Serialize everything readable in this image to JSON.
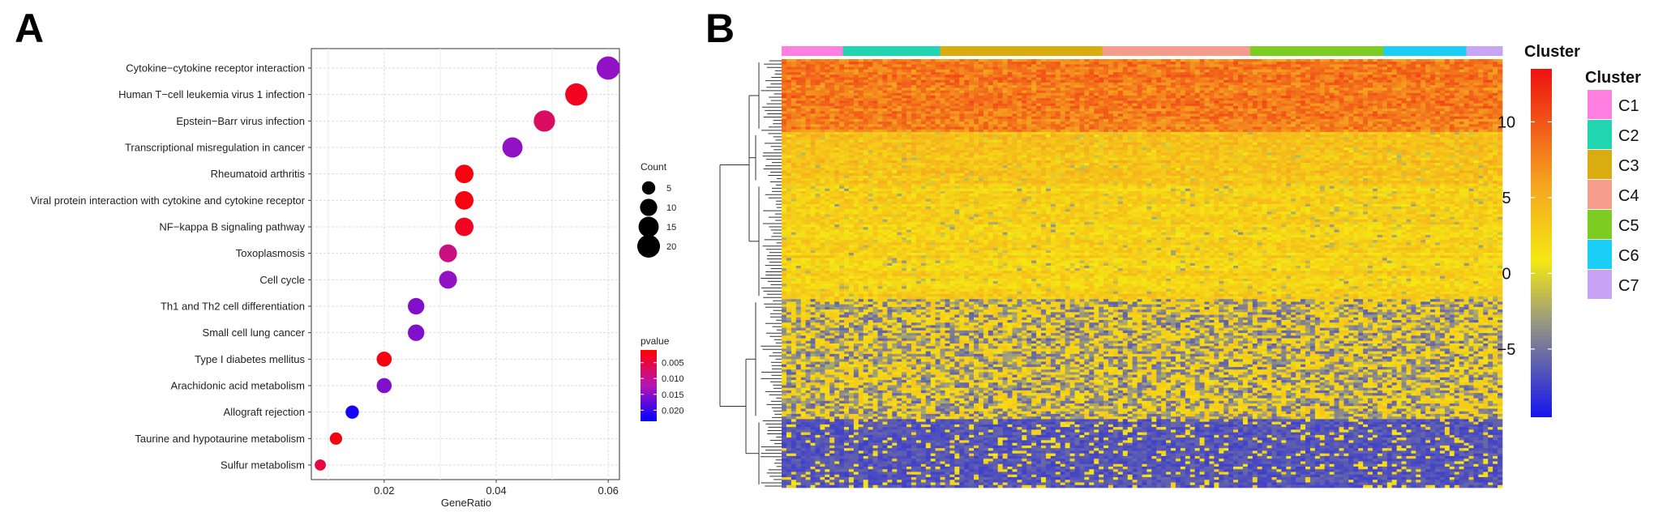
{
  "panels": {
    "a_label": "A",
    "b_label": "B"
  },
  "chart_data": [
    {
      "type": "scatter",
      "title": "",
      "xlabel": "GeneRatio",
      "ylabel": "",
      "xlim": [
        0.007,
        0.062
      ],
      "x_ticks": [
        "0.02",
        "0.04",
        "0.06"
      ],
      "x_tick_values": [
        0.02,
        0.04,
        0.06
      ],
      "grid": true,
      "legend_position": "right",
      "categories": [
        "Cytokine−cytokine receptor interaction",
        "Human T−cell leukemia virus 1 infection",
        "Epstein−Barr virus infection",
        "Transcriptional misregulation in cancer",
        "Rheumatoid arthritis",
        "Viral protein interaction with cytokine and cytokine receptor",
        "NF−kappa B signaling pathway",
        "Toxoplasmosis",
        "Cell cycle",
        "Th1 and Th2 cell differentiation",
        "Small cell lung cancer",
        "Type I diabetes mellitus",
        "Arachidonic acid metabolism",
        "Allograft rejection",
        "Taurine and hypotaurine metabolism",
        "Sulfur metabolism"
      ],
      "gene_ratio": [
        0.06,
        0.0543,
        0.0486,
        0.0429,
        0.0343,
        0.0343,
        0.0343,
        0.0314,
        0.0314,
        0.0257,
        0.0257,
        0.02,
        0.02,
        0.0143,
        0.0114,
        0.0086
      ],
      "count": [
        21,
        19,
        17,
        15,
        12,
        12,
        12,
        11,
        11,
        9,
        9,
        7,
        7,
        5,
        4,
        3
      ],
      "pvalue": [
        0.0145,
        0.003,
        0.007,
        0.0145,
        0.002,
        0.002,
        0.003,
        0.009,
        0.0145,
        0.0155,
        0.0155,
        0.002,
        0.0155,
        0.022,
        0.002,
        0.005
      ],
      "size_legend": {
        "title": "Count",
        "labels": [
          "5",
          "10",
          "15",
          "20"
        ],
        "values": [
          5,
          10,
          15,
          20
        ]
      },
      "color_legend": {
        "title": "pvalue",
        "labels": [
          "0.005",
          "0.010",
          "0.015",
          "0.020"
        ],
        "values": [
          0.005,
          0.01,
          0.015,
          0.02
        ],
        "low_color": "#ff0000",
        "mid_color": "#b516b5",
        "high_color": "#0000ff"
      }
    },
    {
      "type": "heatmap",
      "title": "",
      "column_annotation_title": "Cluster",
      "clusters": [
        {
          "name": "C1",
          "color": "#ff7fe0",
          "fraction": 0.085
        },
        {
          "name": "C2",
          "color": "#1fd6b0",
          "fraction": 0.135
        },
        {
          "name": "C3",
          "color": "#d9ad10",
          "fraction": 0.225
        },
        {
          "name": "C4",
          "color": "#f59c8c",
          "fraction": 0.205
        },
        {
          "name": "C5",
          "color": "#7dcc21",
          "fraction": 0.185
        },
        {
          "name": "C6",
          "color": "#1acef5",
          "fraction": 0.115
        },
        {
          "name": "C7",
          "color": "#c9a3f5",
          "fraction": 0.05
        }
      ],
      "colorbar": {
        "title": "Cluster",
        "labels": [
          "10",
          "5",
          "0",
          "−5"
        ],
        "values": [
          10,
          5,
          0,
          -5
        ],
        "range": [
          -9.5,
          13.5
        ]
      },
      "row_blocks": [
        {
          "level": "high",
          "value": 8,
          "fraction": 0.17
        },
        {
          "level": "mid-high",
          "value": 3.5,
          "fraction": 0.12
        },
        {
          "level": "mid",
          "value": 2.5,
          "fraction": 0.27
        },
        {
          "level": "mixed",
          "value": -1.5,
          "fraction": 0.28
        },
        {
          "level": "low",
          "value": -7,
          "fraction": 0.16
        }
      ]
    }
  ]
}
